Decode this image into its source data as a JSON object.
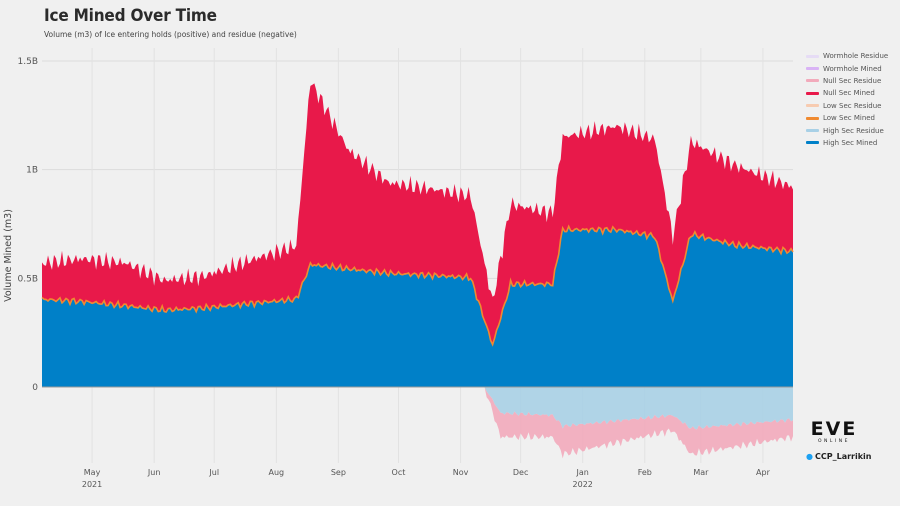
{
  "header": {
    "title": "Ice Mined Over Time",
    "subtitle": "Volume (m3) of Ice entering holds (positive) and residue (negative)"
  },
  "brand": {
    "logo_text": "EVE",
    "logo_subtext": "ONLINE",
    "credit": "CCP_Larrikin",
    "credit_icon": "twitter-bird-icon"
  },
  "chart_data": {
    "type": "area",
    "stacked": true,
    "ylabel": "Volume Mined (m3)",
    "x_axis": "date",
    "y_ticks": [
      {
        "value": 0,
        "label": "0"
      },
      {
        "value": 500000000,
        "label": "0.5B"
      },
      {
        "value": 1000000000,
        "label": "1B"
      },
      {
        "value": 1500000000,
        "label": "1.5B"
      }
    ],
    "x_ticks": [
      {
        "date": "2021-05-15",
        "label": "May",
        "sub": "2021"
      },
      {
        "date": "2021-06-15",
        "label": "Jun",
        "sub": ""
      },
      {
        "date": "2021-07-15",
        "label": "Jul",
        "sub": ""
      },
      {
        "date": "2021-08-15",
        "label": "Aug",
        "sub": ""
      },
      {
        "date": "2021-09-15",
        "label": "Sep",
        "sub": ""
      },
      {
        "date": "2021-10-15",
        "label": "Oct",
        "sub": ""
      },
      {
        "date": "2021-11-15",
        "label": "Nov",
        "sub": ""
      },
      {
        "date": "2021-12-15",
        "label": "Dec",
        "sub": ""
      },
      {
        "date": "2022-01-15",
        "label": "Jan",
        "sub": "2022"
      },
      {
        "date": "2022-02-15",
        "label": "Feb",
        "sub": ""
      },
      {
        "date": "2022-03-15",
        "label": "Mar",
        "sub": ""
      },
      {
        "date": "2022-04-15",
        "label": "Apr",
        "sub": ""
      }
    ],
    "xlim": [
      "2021-04-20",
      "2022-04-30"
    ],
    "ylim": [
      -350000000,
      1560000000
    ],
    "grid": true,
    "legend_position": "right",
    "series": [
      {
        "name": "Wormhole Residue",
        "color": "#e6dcf5"
      },
      {
        "name": "Wormhole Mined",
        "color": "#d9b3f5"
      },
      {
        "name": "Null Sec Residue",
        "color": "#f2aabb"
      },
      {
        "name": "Null Sec Mined",
        "color": "#e8194a"
      },
      {
        "name": "Low Sec Residue",
        "color": "#f7cbb0"
      },
      {
        "name": "Low Sec Mined",
        "color": "#f08a30"
      },
      {
        "name": "High Sec Residue",
        "color": "#a8d0e6"
      },
      {
        "name": "High Sec Mined",
        "color": "#0080c8"
      }
    ],
    "high_sec_mined": [
      [
        "2021-04-20",
        400000000
      ],
      [
        "2021-05-10",
        390000000
      ],
      [
        "2021-06-01",
        370000000
      ],
      [
        "2021-06-20",
        350000000
      ],
      [
        "2021-07-10",
        360000000
      ],
      [
        "2021-08-01",
        380000000
      ],
      [
        "2021-08-25",
        400000000
      ],
      [
        "2021-09-01",
        560000000
      ],
      [
        "2021-09-20",
        540000000
      ],
      [
        "2021-10-10",
        520000000
      ],
      [
        "2021-11-01",
        510000000
      ],
      [
        "2021-11-20",
        500000000
      ],
      [
        "2021-12-01",
        190000000
      ],
      [
        "2021-12-10",
        470000000
      ],
      [
        "2021-12-31",
        470000000
      ],
      [
        "2022-01-05",
        720000000
      ],
      [
        "2022-02-01",
        720000000
      ],
      [
        "2022-02-20",
        690000000
      ],
      [
        "2022-03-01",
        390000000
      ],
      [
        "2022-03-10",
        700000000
      ],
      [
        "2022-04-01",
        650000000
      ],
      [
        "2022-04-30",
        620000000
      ]
    ],
    "null_sec_mined": [
      [
        "2021-04-20",
        170000000
      ],
      [
        "2021-05-10",
        200000000
      ],
      [
        "2021-06-01",
        200000000
      ],
      [
        "2021-06-20",
        140000000
      ],
      [
        "2021-07-10",
        150000000
      ],
      [
        "2021-08-01",
        200000000
      ],
      [
        "2021-08-25",
        250000000
      ],
      [
        "2021-09-01",
        850000000
      ],
      [
        "2021-09-20",
        550000000
      ],
      [
        "2021-10-10",
        420000000
      ],
      [
        "2021-11-01",
        400000000
      ],
      [
        "2021-11-20",
        380000000
      ],
      [
        "2021-12-01",
        200000000
      ],
      [
        "2021-12-10",
        370000000
      ],
      [
        "2021-12-31",
        330000000
      ],
      [
        "2022-01-05",
        430000000
      ],
      [
        "2022-02-01",
        480000000
      ],
      [
        "2022-02-20",
        450000000
      ],
      [
        "2022-03-01",
        300000000
      ],
      [
        "2022-03-10",
        430000000
      ],
      [
        "2022-04-01",
        370000000
      ],
      [
        "2022-04-30",
        300000000
      ]
    ],
    "high_sec_residue": [
      [
        "2021-11-27",
        0
      ],
      [
        "2021-12-05",
        -120000000
      ],
      [
        "2021-12-31",
        -130000000
      ],
      [
        "2022-01-05",
        -180000000
      ],
      [
        "2022-03-01",
        -130000000
      ],
      [
        "2022-03-10",
        -190000000
      ],
      [
        "2022-04-30",
        -150000000
      ]
    ],
    "null_sec_residue": [
      [
        "2021-11-27",
        0
      ],
      [
        "2021-12-05",
        -110000000
      ],
      [
        "2021-12-31",
        -100000000
      ],
      [
        "2022-01-05",
        -130000000
      ],
      [
        "2022-03-01",
        -70000000
      ],
      [
        "2022-03-10",
        -120000000
      ],
      [
        "2022-04-30",
        -80000000
      ]
    ]
  }
}
